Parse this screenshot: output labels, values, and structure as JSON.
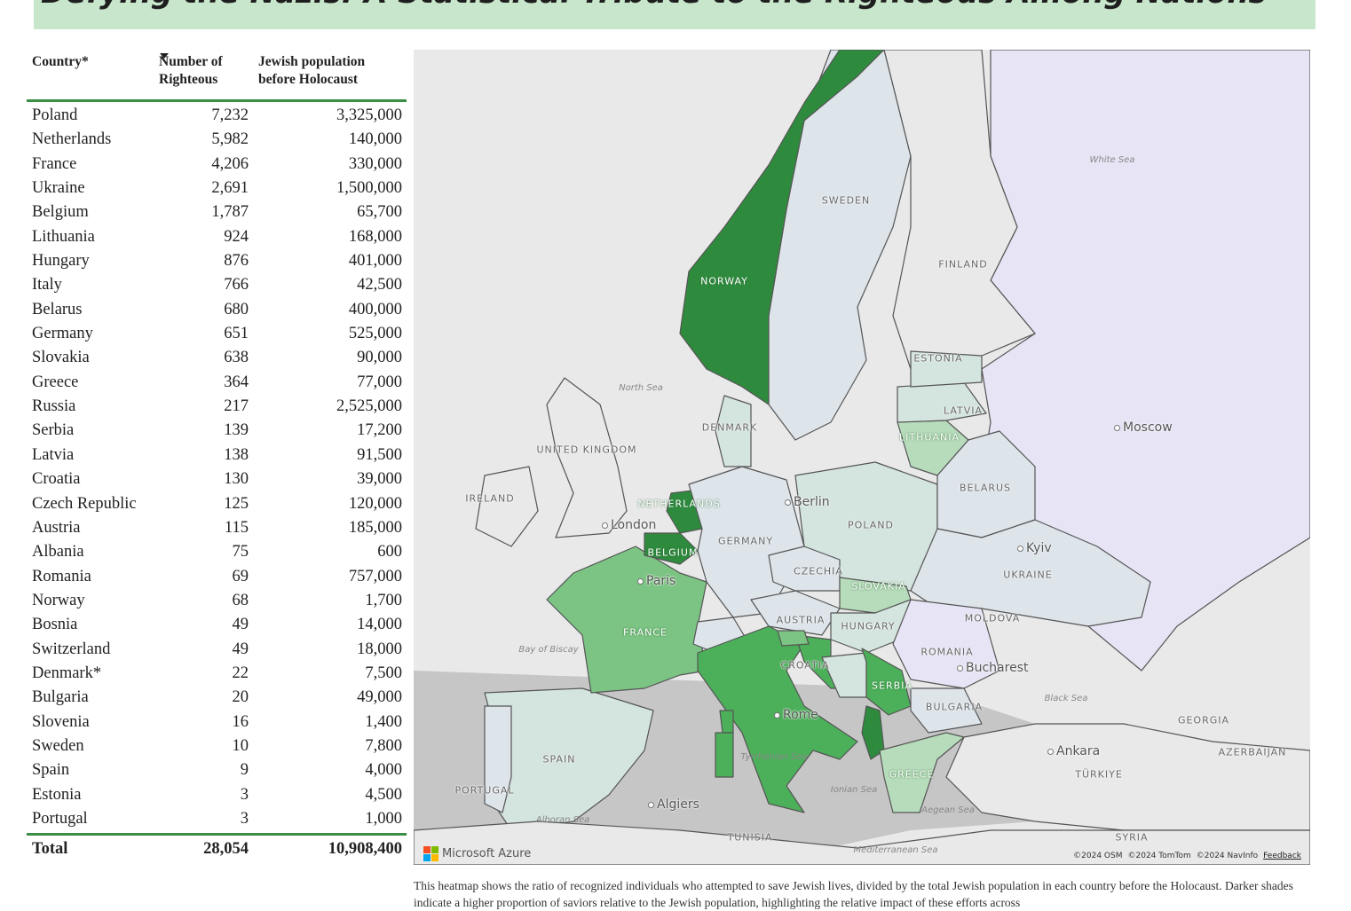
{
  "title": "Defying the Nazis: A Statistical Tribute to the Righteous Among Nations",
  "table": {
    "headers": {
      "country": "Country*",
      "righteous": "Number of Righteous",
      "population": "Jewish population before Holocaust"
    },
    "sort": {
      "column": "righteous",
      "direction": "descending"
    },
    "rows": [
      {
        "country": "Poland",
        "righteous": "7,232",
        "population": "3,325,000"
      },
      {
        "country": "Netherlands",
        "righteous": "5,982",
        "population": "140,000"
      },
      {
        "country": "France",
        "righteous": "4,206",
        "population": "330,000"
      },
      {
        "country": "Ukraine",
        "righteous": "2,691",
        "population": "1,500,000"
      },
      {
        "country": "Belgium",
        "righteous": "1,787",
        "population": "65,700"
      },
      {
        "country": "Lithuania",
        "righteous": "924",
        "population": "168,000"
      },
      {
        "country": "Hungary",
        "righteous": "876",
        "population": "401,000"
      },
      {
        "country": "Italy",
        "righteous": "766",
        "population": "42,500"
      },
      {
        "country": "Belarus",
        "righteous": "680",
        "population": "400,000"
      },
      {
        "country": "Germany",
        "righteous": "651",
        "population": "525,000"
      },
      {
        "country": "Slovakia",
        "righteous": "638",
        "population": "90,000"
      },
      {
        "country": "Greece",
        "righteous": "364",
        "population": "77,000"
      },
      {
        "country": "Russia",
        "righteous": "217",
        "population": "2,525,000"
      },
      {
        "country": "Serbia",
        "righteous": "139",
        "population": "17,200"
      },
      {
        "country": "Latvia",
        "righteous": "138",
        "population": "91,500"
      },
      {
        "country": "Croatia",
        "righteous": "130",
        "population": "39,000"
      },
      {
        "country": "Czech Republic",
        "righteous": "125",
        "population": "120,000"
      },
      {
        "country": "Austria",
        "righteous": "115",
        "population": "185,000"
      },
      {
        "country": "Albania",
        "righteous": "75",
        "population": "600"
      },
      {
        "country": "Romania",
        "righteous": "69",
        "population": "757,000"
      },
      {
        "country": "Norway",
        "righteous": "68",
        "population": "1,700"
      },
      {
        "country": "Bosnia",
        "righteous": "49",
        "population": "14,000"
      },
      {
        "country": "Switzerland",
        "righteous": "49",
        "population": "18,000"
      },
      {
        "country": "Denmark*",
        "righteous": "22",
        "population": "7,500"
      },
      {
        "country": "Bulgaria",
        "righteous": "20",
        "population": "49,000"
      },
      {
        "country": "Slovenia",
        "righteous": "16",
        "population": "1,400"
      },
      {
        "country": "Sweden",
        "righteous": "10",
        "population": "7,800"
      },
      {
        "country": "Spain",
        "righteous": "9",
        "population": "4,000"
      },
      {
        "country": "Estonia",
        "righteous": "3",
        "population": "4,500"
      },
      {
        "country": "Portugal",
        "righteous": "3",
        "population": "1,000"
      }
    ],
    "total": {
      "label": "Total",
      "righteous": "28,054",
      "population": "10,908,400"
    }
  },
  "map": {
    "colors": {
      "water": "#c6c6c6",
      "land": "#e9e9e9",
      "russia": "#e6e4f5",
      "darkest": "#2e8b3e",
      "dark": "#4caf5a",
      "medium": "#7cc483",
      "light": "#b7dcbb",
      "pale": "#d4e4de",
      "palest": "#dde4ea"
    },
    "country_labels": [
      "NORWAY",
      "SWEDEN",
      "FINLAND",
      "ESTONIA",
      "LATVIA",
      "LITHUANIA",
      "BELARUS",
      "POLAND",
      "GERMANY",
      "DENMARK",
      "NETHERLANDS",
      "BELGIUM",
      "FRANCE",
      "CZECHIA",
      "SLOVAKIA",
      "AUSTRIA",
      "HUNGARY",
      "UKRAINE",
      "MOLDOVA",
      "ROMANIA",
      "CROATIA",
      "SERBIA",
      "BULGARIA",
      "GREECE",
      "SPAIN",
      "PORTUGAL",
      "UNITED KINGDOM",
      "IRELAND",
      "TUNISIA",
      "SYRIA",
      "GEORGIA",
      "AZERBAIJAN",
      "TÜRKIYE"
    ],
    "cities": [
      "Moscow",
      "Berlin",
      "London",
      "Paris",
      "Kyiv",
      "Bucharest",
      "Rome",
      "Ankara",
      "Algiers"
    ],
    "seas": [
      "White Sea",
      "North Sea",
      "Bay of Biscay",
      "Black Sea",
      "Tyrrhenian Sea",
      "Ionian Sea",
      "Aegean Sea",
      "Alboran Sea",
      "Mediterranean Sea"
    ],
    "brand": "Microsoft Azure",
    "attribution": [
      "©2024 OSM",
      "©2024 TomTom",
      "©2024 NavInfo"
    ],
    "feedback": "Feedback"
  },
  "caption": "This heatmap shows the ratio of recognized individuals who attempted to save Jewish lives, divided by the total Jewish population in each country before the Holocaust. Darker shades indicate a higher proportion of saviors relative to the Jewish population, highlighting the relative impact of these efforts across"
}
